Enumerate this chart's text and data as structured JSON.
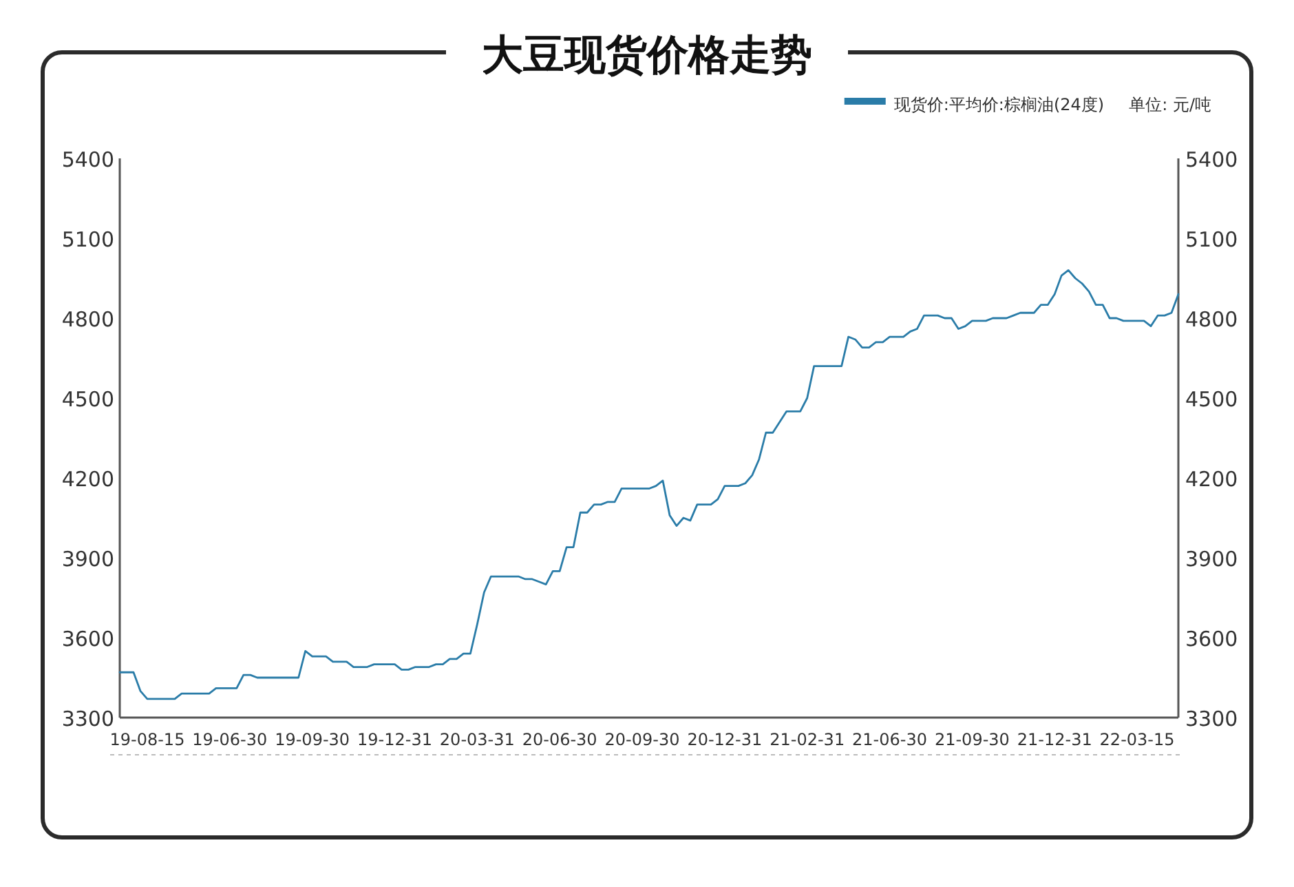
{
  "chart_data": {
    "type": "line",
    "title": "大豆现货价格走势",
    "categories": [
      null,
      null,
      null,
      null,
      "19-08-15",
      null,
      null,
      null,
      null,
      null,
      null,
      null,
      null,
      null,
      null,
      null,
      "19-06-30",
      null,
      null,
      null,
      null,
      null,
      null,
      null,
      null,
      null,
      null,
      null,
      "19-09-30",
      null,
      null,
      null,
      null,
      null,
      null,
      null,
      null,
      null,
      null,
      null,
      "19-12-31",
      null,
      null,
      null,
      null,
      null,
      null,
      null,
      null,
      null,
      null,
      null,
      "20-03-31",
      null,
      null,
      null,
      null,
      null,
      null,
      null,
      null,
      null,
      null,
      null,
      "20-06-30",
      null,
      null,
      null,
      null,
      null,
      null,
      null,
      null,
      null,
      null,
      null,
      "20-09-30",
      null,
      null,
      null,
      null,
      null,
      null,
      null,
      null,
      null,
      null,
      null,
      "20-12-31",
      null,
      null,
      null,
      null,
      null,
      null,
      null,
      null,
      null,
      null,
      null,
      "21-02-31",
      null,
      null,
      null,
      null,
      null,
      null,
      null,
      null,
      null,
      null,
      null,
      "21-06-30",
      null,
      null,
      null,
      null,
      null,
      null,
      null,
      null,
      null,
      null,
      null,
      "21-09-30",
      null,
      null,
      null,
      null,
      null,
      null,
      null,
      null,
      null,
      null,
      null,
      "21-12-31",
      null,
      null,
      null,
      null,
      null,
      null,
      null,
      null,
      null,
      null,
      null,
      "22-03-15",
      null,
      null,
      null,
      null,
      null,
      null
    ],
    "series": [
      {
        "name": "现货价:平均价:棕榈油(24度)",
        "color": "#2a7ca8",
        "values": [
          3470,
          3470,
          3470,
          3400,
          3370,
          3370,
          3370,
          3370,
          3370,
          3390,
          3390,
          3390,
          3390,
          3390,
          3410,
          3410,
          3410,
          3410,
          3460,
          3460,
          3450,
          3450,
          3450,
          3450,
          3450,
          3450,
          3450,
          3550,
          3530,
          3530,
          3530,
          3510,
          3510,
          3510,
          3490,
          3490,
          3490,
          3500,
          3500,
          3500,
          3500,
          3480,
          3480,
          3490,
          3490,
          3490,
          3500,
          3500,
          3520,
          3520,
          3540,
          3540,
          3650,
          3770,
          3830,
          3830,
          3830,
          3830,
          3830,
          3820,
          3820,
          3810,
          3800,
          3850,
          3850,
          3940,
          3940,
          4070,
          4070,
          4100,
          4100,
          4110,
          4110,
          4160,
          4160,
          4160,
          4160,
          4160,
          4170,
          4190,
          4060,
          4020,
          4050,
          4040,
          4100,
          4100,
          4100,
          4120,
          4170,
          4170,
          4170,
          4180,
          4210,
          4270,
          4370,
          4370,
          4410,
          4450,
          4450,
          4450,
          4500,
          4620,
          4620,
          4620,
          4620,
          4620,
          4730,
          4720,
          4690,
          4690,
          4710,
          4710,
          4730,
          4730,
          4730,
          4750,
          4760,
          4810,
          4810,
          4810,
          4800,
          4800,
          4760,
          4770,
          4790,
          4790,
          4790,
          4800,
          4800,
          4800,
          4810,
          4820,
          4820,
          4820,
          4850,
          4850,
          4890,
          4960,
          4980,
          4950,
          4930,
          4900,
          4850,
          4850,
          4800,
          4800,
          4790,
          4790,
          4790,
          4790,
          4770,
          4810,
          4810,
          4820,
          4890
        ]
      }
    ],
    "ylim": [
      3300,
      5400
    ],
    "yticks": [
      3300,
      3600,
      3900,
      4200,
      4500,
      4800,
      5100,
      5400
    ],
    "y2lim": [
      3300,
      5400
    ],
    "y2ticks": [
      3300,
      3600,
      3900,
      4200,
      4500,
      4800,
      5100,
      5400
    ],
    "legend": "top right",
    "annotations": [
      "单位: 元/吨"
    ]
  }
}
